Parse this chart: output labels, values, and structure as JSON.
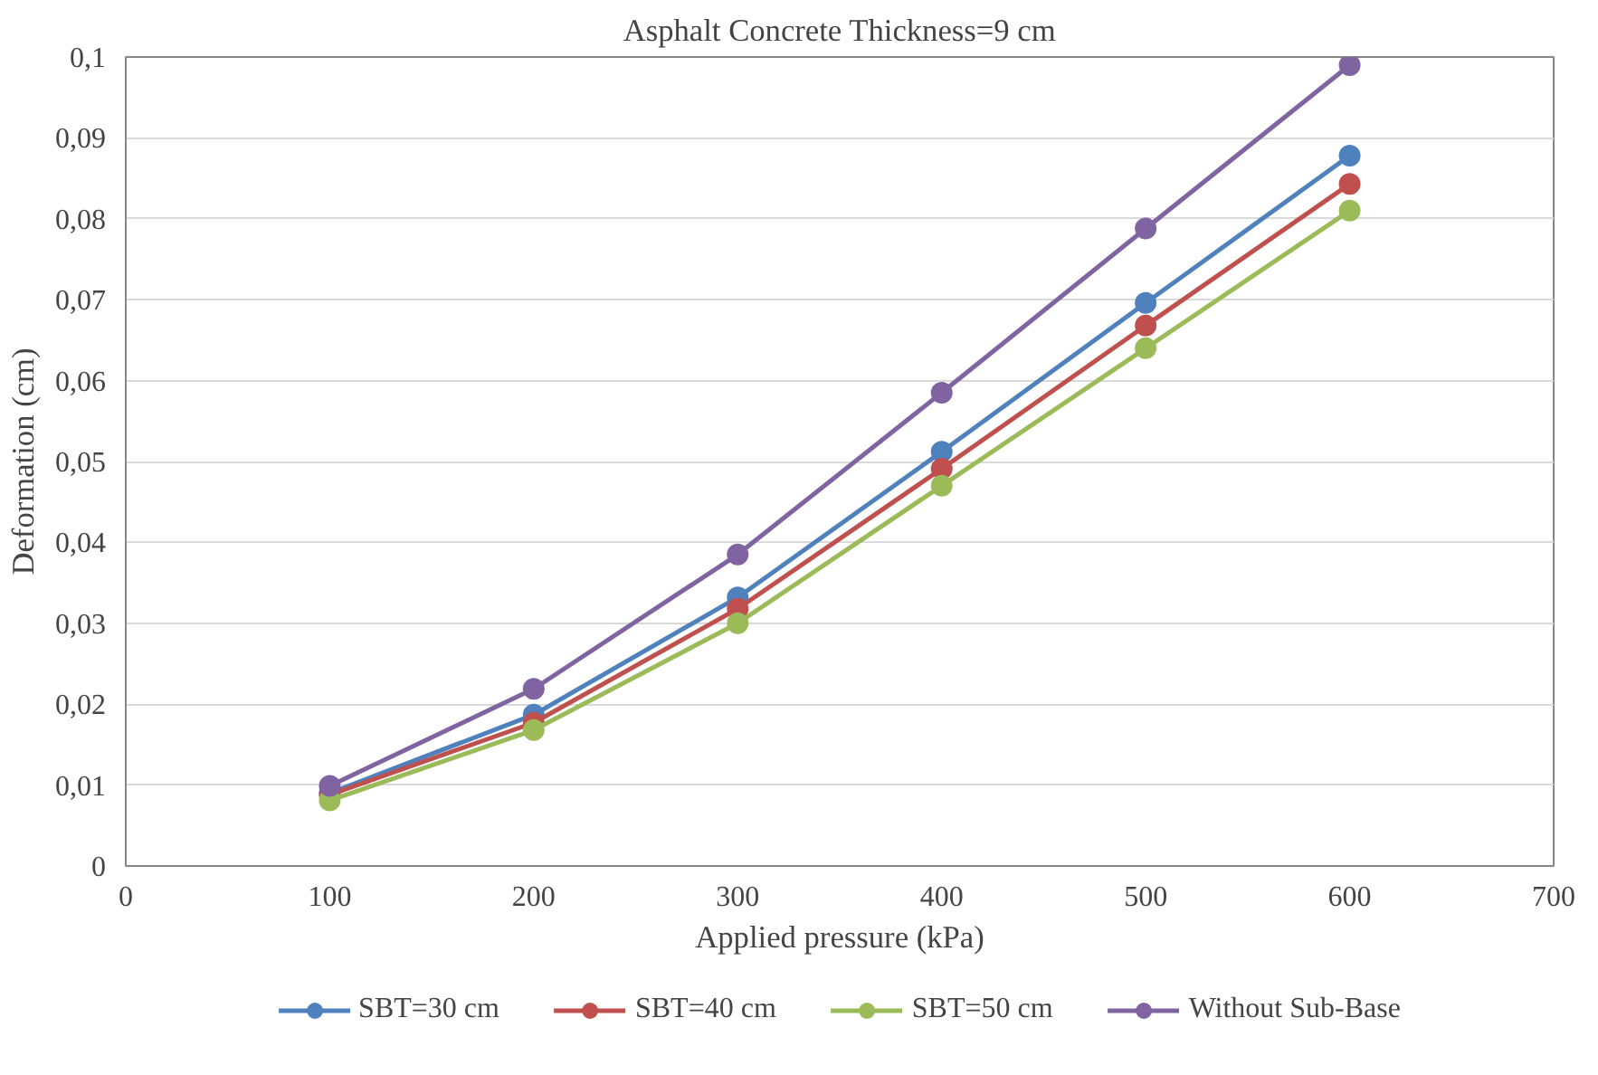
{
  "chart_data": {
    "type": "line",
    "title": "Asphalt Concrete Thickness=9 cm",
    "xlabel": "Applied pressure (kPa)",
    "ylabel": "Deformation (cm)",
    "x": [
      100,
      200,
      300,
      400,
      500,
      600
    ],
    "series": [
      {
        "name": "SBT=30 cm",
        "color": "#4f81bd",
        "values": [
          0.009,
          0.0187,
          0.0332,
          0.0512,
          0.0696,
          0.0878
        ]
      },
      {
        "name": "SBT=40 cm",
        "color": "#c0504d",
        "values": [
          0.0088,
          0.0177,
          0.0318,
          0.0491,
          0.0668,
          0.0843
        ]
      },
      {
        "name": "SBT=50 cm",
        "color": "#9bbb59",
        "values": [
          0.0081,
          0.0168,
          0.03,
          0.047,
          0.064,
          0.081
        ]
      },
      {
        "name": "Without Sub-Base",
        "color": "#8064a2",
        "values": [
          0.0099,
          0.0219,
          0.0385,
          0.0585,
          0.0788,
          0.099
        ]
      }
    ],
    "xlim": [
      0,
      700
    ],
    "xticks": [
      0,
      100,
      200,
      300,
      400,
      500,
      600,
      700
    ],
    "ylim": [
      0,
      0.1
    ],
    "yticks": [
      0,
      {
        "value": 0.01,
        "label": "0,01"
      },
      {
        "value": 0.02,
        "label": "0,02"
      },
      {
        "value": 0.03,
        "label": "0,03"
      },
      {
        "value": 0.04,
        "label": "0,04"
      },
      {
        "value": 0.05,
        "label": "0,05"
      },
      {
        "value": 0.06,
        "label": "0,06"
      },
      {
        "value": 0.07,
        "label": "0,07"
      },
      {
        "value": 0.08,
        "label": "0,08"
      },
      {
        "value": 0.09,
        "label": "0,09"
      },
      {
        "value": 0.1,
        "label": "0,1"
      }
    ],
    "grid": "y",
    "legend": "bottom",
    "marker": "circle",
    "line_style": "solid"
  }
}
